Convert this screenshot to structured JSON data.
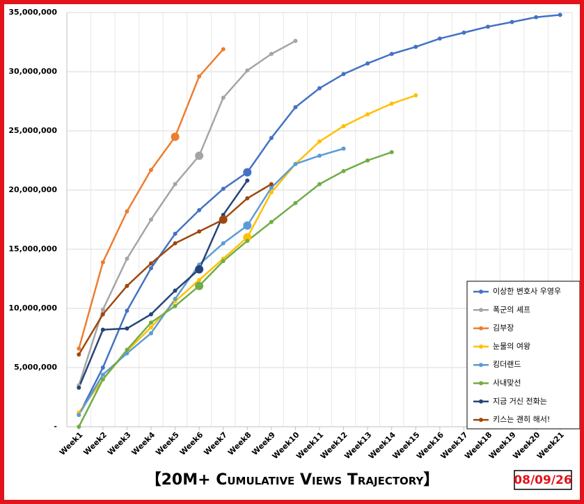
{
  "chart_data": {
    "type": "line",
    "title": "【20M+ Cumulative Views Trajectory】",
    "date": "08/09/26",
    "categories": [
      "Week1",
      "Week2",
      "Week3",
      "Week4",
      "Week5",
      "Week6",
      "Week7",
      "Week8",
      "Week9",
      "Week10",
      "Week11",
      "Week12",
      "Week13",
      "Week14",
      "Week15",
      "Week16",
      "Week17",
      "Week18",
      "Week19",
      "Week20",
      "Week21"
    ],
    "ylim": [
      0,
      35000000
    ],
    "yticks": [
      {
        "value": 0,
        "label": "-"
      },
      {
        "value": 5000000,
        "label": "5,000,000"
      },
      {
        "value": 10000000,
        "label": "10,000,000"
      },
      {
        "value": 15000000,
        "label": "15,000,000"
      },
      {
        "value": 20000000,
        "label": "20,000,000"
      },
      {
        "value": 25000000,
        "label": "25,000,000"
      },
      {
        "value": 30000000,
        "label": "30,000,000"
      },
      {
        "value": 35000000,
        "label": "35,000,000"
      }
    ],
    "grid": true,
    "legend": "bottom-right",
    "series": [
      {
        "name": "이상한 변호사 우영우",
        "color": "#4472c4",
        "highlight": 7,
        "values": [
          1000000,
          5000000,
          9800000,
          13400000,
          16300000,
          18300000,
          20100000,
          21500000,
          24400000,
          27000000,
          28600000,
          29800000,
          30700000,
          31500000,
          32100000,
          32800000,
          33300000,
          33800000,
          34200000,
          34600000,
          34800000
        ]
      },
      {
        "name": "폭군의 셰프",
        "color": "#a5a5a5",
        "highlight": 5,
        "values": [
          3500000,
          9900000,
          14200000,
          17500000,
          20500000,
          22900000,
          27800000,
          30100000,
          31500000,
          32600000,
          null,
          null,
          null,
          null,
          null,
          null,
          null,
          null,
          null,
          null,
          null
        ]
      },
      {
        "name": "김부장",
        "color": "#ed7d31",
        "highlight": 4,
        "values": [
          6600000,
          13900000,
          18200000,
          21700000,
          24500000,
          29600000,
          31900000,
          null,
          null,
          null,
          null,
          null,
          null,
          null,
          null,
          null,
          null,
          null,
          null,
          null,
          null
        ]
      },
      {
        "name": "눈물의 여왕",
        "color": "#ffc000",
        "highlight": 7,
        "values": [
          1200000,
          4000000,
          6400000,
          8400000,
          10600000,
          12400000,
          14200000,
          16000000,
          19800000,
          22200000,
          24100000,
          25400000,
          26400000,
          27300000,
          28000000,
          null,
          null,
          null,
          null,
          null,
          null
        ]
      },
      {
        "name": "킹더랜드",
        "color": "#5b9bd5",
        "highlight": 7,
        "values": [
          1000000,
          4400000,
          6200000,
          7900000,
          10800000,
          13700000,
          15500000,
          17000000,
          20200000,
          22200000,
          22900000,
          23500000,
          null,
          null,
          null,
          null,
          null,
          null,
          null,
          null,
          null
        ]
      },
      {
        "name": "사내맞선",
        "color": "#70ad47",
        "highlight": 5,
        "values": [
          0,
          4000000,
          6500000,
          8800000,
          10200000,
          11900000,
          14000000,
          15700000,
          17300000,
          18900000,
          20500000,
          21600000,
          22500000,
          23200000,
          null,
          null,
          null,
          null,
          null,
          null,
          null
        ]
      },
      {
        "name": "지금 거신 전화는",
        "color": "#264478",
        "highlight": 5,
        "values": [
          3300000,
          8200000,
          8300000,
          9500000,
          11500000,
          13300000,
          17900000,
          20800000,
          null,
          null,
          null,
          null,
          null,
          null,
          null,
          null,
          null,
          null,
          null,
          null,
          null
        ]
      },
      {
        "name": "키스는 괜히 해서!",
        "color": "#9e480e",
        "highlight": 6,
        "values": [
          6100000,
          9500000,
          11900000,
          13800000,
          15500000,
          16500000,
          17500000,
          19300000,
          20500000,
          null,
          null,
          null,
          null,
          null,
          null,
          null,
          null,
          null,
          null,
          null,
          null
        ]
      }
    ]
  }
}
